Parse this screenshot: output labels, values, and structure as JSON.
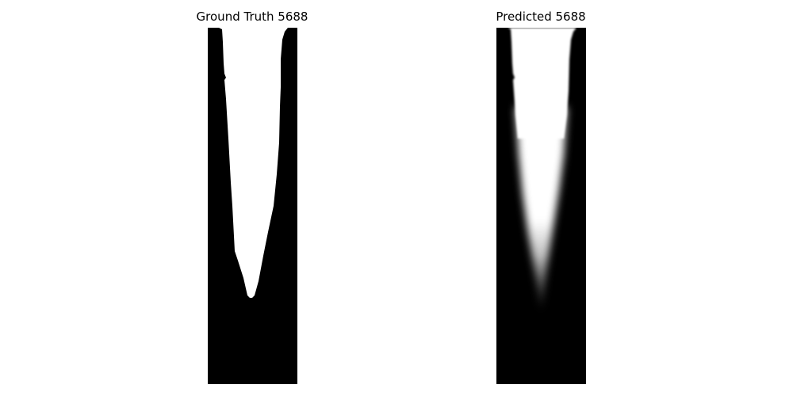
{
  "panels": [
    {
      "id": "ground_truth",
      "title": "Ground Truth 5688"
    },
    {
      "id": "predicted",
      "title": "Predicted 5688"
    }
  ],
  "colors": {
    "background_mask": "#000000",
    "foreground_mask": "#ffffff",
    "title_text": "#000000"
  }
}
